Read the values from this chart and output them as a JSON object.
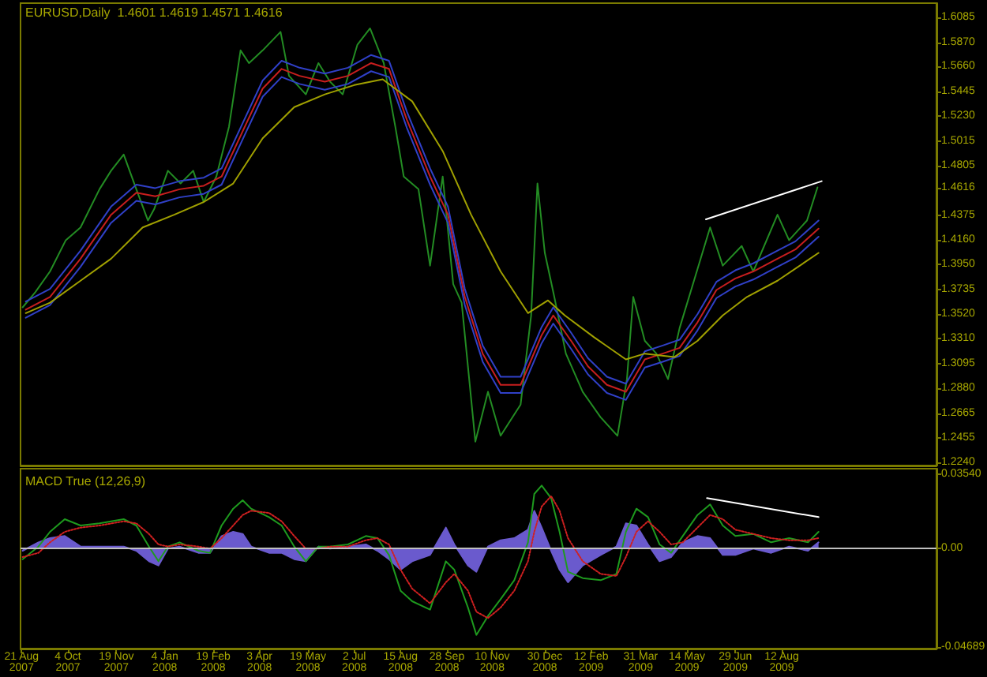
{
  "chart_data": [
    {
      "type": "line",
      "title": "EURUSD,Daily  1.4601 1.4619 1.4571 1.4616",
      "xlim": [
        "2007-08-20",
        "2010-01-06"
      ],
      "ylim": [
        1.2213,
        1.6208
      ],
      "yticks": [
        1.6085,
        {
          "value": 1.587,
          "label": "1.5870"
        },
        {
          "value": 1.566,
          "label": "1.5660"
        },
        1.5445,
        {
          "value": 1.523,
          "label": "1.5230"
        },
        1.5015,
        1.4805,
        1.4616,
        1.4375,
        {
          "value": 1.416,
          "label": "1.4160"
        },
        {
          "value": 1.395,
          "label": "1.3950"
        },
        1.3735,
        {
          "value": 1.352,
          "label": "1.3520"
        },
        {
          "value": 1.331,
          "label": "1.3310"
        },
        1.3095,
        {
          "value": 1.288,
          "label": "1.2880"
        },
        1.2665,
        1.2455,
        {
          "value": 1.224,
          "label": "1.2240"
        }
      ],
      "tick_labels": "y",
      "marker": "none",
      "series": [
        {
          "type": "line",
          "color": "#238c23",
          "x": [
            "2007-08-22",
            "2007-09-03",
            "2007-09-17",
            "2007-10-02",
            "2007-10-16",
            "2007-11-03",
            "2007-11-14",
            "2007-11-26",
            "2007-12-08",
            "2007-12-19",
            "2007-12-25",
            "2008-01-07",
            "2008-01-19",
            "2008-01-31",
            "2008-02-10",
            "2008-02-22",
            "2008-03-05",
            "2008-03-16",
            "2008-03-24",
            "2008-04-06",
            "2008-04-23",
            "2008-05-01",
            "2008-05-17",
            "2008-05-29",
            "2008-06-09",
            "2008-06-21",
            "2008-07-05",
            "2008-07-17",
            "2008-07-30",
            "2008-08-10",
            "2008-08-18",
            "2008-09-01",
            "2008-09-12",
            "2008-09-24",
            "2008-10-04",
            "2008-10-12",
            "2008-10-25",
            "2008-11-06",
            "2008-11-18",
            "2008-12-07",
            "2008-12-17",
            "2008-12-23",
            "2008-12-30",
            "2009-01-08",
            "2009-01-19",
            "2009-02-04",
            "2009-02-21",
            "2009-03-09",
            "2009-03-18",
            "2009-03-24",
            "2009-04-04",
            "2009-04-15",
            "2009-04-26",
            "2009-05-07",
            "2009-05-18",
            "2009-06-05",
            "2009-06-17",
            "2009-07-05",
            "2009-07-16",
            "2009-08-08",
            "2009-08-19",
            "2009-09-05",
            "2009-09-15"
          ],
          "values": [
            1.358,
            1.371,
            1.389,
            1.416,
            1.427,
            1.46,
            1.476,
            1.49,
            1.46,
            1.433,
            1.443,
            1.476,
            1.465,
            1.476,
            1.449,
            1.471,
            1.514,
            1.58,
            1.569,
            1.58,
            1.596,
            1.558,
            1.542,
            1.569,
            1.553,
            1.542,
            1.585,
            1.599,
            1.569,
            1.514,
            1.471,
            1.46,
            1.394,
            1.471,
            1.378,
            1.362,
            1.242,
            1.285,
            1.247,
            1.274,
            1.351,
            1.465,
            1.405,
            1.367,
            1.318,
            1.285,
            1.263,
            1.247,
            1.296,
            1.367,
            1.329,
            1.318,
            1.296,
            1.34,
            1.373,
            1.427,
            1.394,
            1.411,
            1.389,
            1.438,
            1.416,
            1.433,
            1.4616
          ]
        },
        {
          "type": "line",
          "color": "#3040c8",
          "x": [
            "2007-08-25",
            "2007-09-17",
            "2007-10-16",
            "2007-11-14",
            "2007-12-08",
            "2007-12-26",
            "2008-01-18",
            "2008-02-10",
            "2008-02-27",
            "2008-03-20",
            "2008-04-06",
            "2008-04-24",
            "2008-05-11",
            "2008-06-04",
            "2008-06-26",
            "2008-07-18",
            "2008-08-04",
            "2008-08-21",
            "2008-09-12",
            "2008-09-29",
            "2008-10-15",
            "2008-11-01",
            "2008-11-18",
            "2008-12-07",
            "2008-12-27",
            "2009-01-07",
            "2009-01-24",
            "2009-02-09",
            "2009-02-27",
            "2009-03-17",
            "2009-04-04",
            "2009-04-21",
            "2009-05-07",
            "2009-05-24",
            "2009-06-11",
            "2009-06-29",
            "2009-07-16",
            "2009-08-08",
            "2009-08-25",
            "2009-09-16"
          ],
          "values": [
            1.363,
            1.374,
            1.407,
            1.445,
            1.464,
            1.461,
            1.467,
            1.47,
            1.478,
            1.521,
            1.554,
            1.571,
            1.565,
            1.56,
            1.565,
            1.576,
            1.571,
            1.527,
            1.478,
            1.445,
            1.374,
            1.325,
            1.298,
            1.298,
            1.341,
            1.358,
            1.336,
            1.314,
            1.298,
            1.292,
            1.32,
            1.325,
            1.33,
            1.352,
            1.38,
            1.39,
            1.396,
            1.407,
            1.415,
            1.433
          ]
        },
        {
          "type": "line",
          "color": "#c81e1e",
          "x": [
            "2007-08-25",
            "2007-09-17",
            "2007-10-16",
            "2007-11-14",
            "2007-12-08",
            "2007-12-26",
            "2008-01-18",
            "2008-02-10",
            "2008-02-27",
            "2008-03-20",
            "2008-04-06",
            "2008-04-24",
            "2008-05-11",
            "2008-06-04",
            "2008-06-26",
            "2008-07-18",
            "2008-08-04",
            "2008-08-21",
            "2008-09-12",
            "2008-09-29",
            "2008-10-15",
            "2008-11-01",
            "2008-11-18",
            "2008-12-07",
            "2008-12-27",
            "2009-01-07",
            "2009-01-24",
            "2009-02-09",
            "2009-02-27",
            "2009-03-17",
            "2009-04-04",
            "2009-04-21",
            "2009-05-07",
            "2009-05-24",
            "2009-06-11",
            "2009-06-29",
            "2009-07-16",
            "2009-08-08",
            "2009-08-25",
            "2009-09-16"
          ],
          "values": [
            1.356,
            1.367,
            1.4,
            1.438,
            1.457,
            1.454,
            1.46,
            1.463,
            1.471,
            1.514,
            1.547,
            1.564,
            1.558,
            1.553,
            1.558,
            1.569,
            1.564,
            1.52,
            1.471,
            1.438,
            1.367,
            1.318,
            1.291,
            1.291,
            1.334,
            1.351,
            1.329,
            1.307,
            1.291,
            1.285,
            1.313,
            1.318,
            1.323,
            1.345,
            1.373,
            1.383,
            1.389,
            1.4,
            1.408,
            1.426
          ]
        },
        {
          "type": "line",
          "color": "#3040c8",
          "x": [
            "2007-08-25",
            "2007-09-17",
            "2007-10-16",
            "2007-11-14",
            "2007-12-08",
            "2007-12-26",
            "2008-01-18",
            "2008-02-10",
            "2008-02-27",
            "2008-03-20",
            "2008-04-06",
            "2008-04-24",
            "2008-05-11",
            "2008-06-04",
            "2008-06-26",
            "2008-07-18",
            "2008-08-04",
            "2008-08-21",
            "2008-09-12",
            "2008-09-29",
            "2008-10-15",
            "2008-11-01",
            "2008-11-18",
            "2008-12-07",
            "2008-12-27",
            "2009-01-07",
            "2009-01-24",
            "2009-02-09",
            "2009-02-27",
            "2009-03-17",
            "2009-04-04",
            "2009-04-21",
            "2009-05-07",
            "2009-05-24",
            "2009-06-11",
            "2009-06-29",
            "2009-07-16",
            "2009-08-08",
            "2009-08-25",
            "2009-09-16"
          ],
          "values": [
            1.349,
            1.36,
            1.393,
            1.431,
            1.45,
            1.447,
            1.453,
            1.456,
            1.464,
            1.507,
            1.54,
            1.557,
            1.551,
            1.546,
            1.551,
            1.562,
            1.557,
            1.513,
            1.464,
            1.431,
            1.36,
            1.311,
            1.284,
            1.284,
            1.327,
            1.344,
            1.322,
            1.3,
            1.284,
            1.278,
            1.306,
            1.311,
            1.316,
            1.338,
            1.366,
            1.376,
            1.382,
            1.393,
            1.401,
            1.419
          ]
        },
        {
          "type": "line",
          "color": "#a0a000",
          "x": [
            "2007-08-25",
            "2007-09-17",
            "2007-10-16",
            "2007-11-14",
            "2007-12-14",
            "2008-01-13",
            "2008-02-10",
            "2008-03-09",
            "2008-04-06",
            "2008-05-06",
            "2008-06-04",
            "2008-07-02",
            "2008-07-29",
            "2008-08-26",
            "2008-09-24",
            "2008-10-21",
            "2008-11-18",
            "2008-12-14",
            "2009-01-02",
            "2009-01-18",
            "2009-02-15",
            "2009-03-17",
            "2009-04-04",
            "2009-05-02",
            "2009-05-24",
            "2009-06-17",
            "2009-07-10",
            "2009-08-08",
            "2009-09-16"
          ],
          "values": [
            1.353,
            1.362,
            1.381,
            1.4,
            1.427,
            1.438,
            1.449,
            1.465,
            1.504,
            1.531,
            1.542,
            1.55,
            1.555,
            1.536,
            1.493,
            1.438,
            1.389,
            1.353,
            1.364,
            1.351,
            1.332,
            1.313,
            1.318,
            1.315,
            1.329,
            1.351,
            1.367,
            1.381,
            1.405
          ]
        },
        {
          "type": "line",
          "color": "#ffffff",
          "x": [
            "2009-06-01",
            "2009-09-19"
          ],
          "values": [
            1.434,
            1.467
          ]
        }
      ]
    },
    {
      "type": "line",
      "title": "MACD True (12,26,9)",
      "xlim": [
        "2007-08-20",
        "2010-01-06"
      ],
      "xticks": [
        {
          "value": "2007-08-21",
          "label": "21 Aug 2007"
        },
        {
          "value": "2007-10-04",
          "label": "4 Oct 2007"
        },
        {
          "value": "2007-11-19",
          "label": "19 Nov 2007"
        },
        {
          "value": "2008-01-04",
          "label": "4 Jan 2008"
        },
        {
          "value": "2008-02-19",
          "label": "19 Feb 2008"
        },
        {
          "value": "2008-04-03",
          "label": "3 Apr 2008"
        },
        {
          "value": "2008-05-19",
          "label": "19 May 2008"
        },
        {
          "value": "2008-07-02",
          "label": "2 Jul 2008"
        },
        {
          "value": "2008-08-15",
          "label": "15 Aug 2008"
        },
        {
          "value": "2008-09-28",
          "label": "28 Sep 2008"
        },
        {
          "value": "2008-11-10",
          "label": "10 Nov 2008"
        },
        {
          "value": "2008-12-30",
          "label": "30 Dec 2008"
        },
        {
          "value": "2009-02-12",
          "label": "12 Feb 2009"
        },
        {
          "value": "2009-03-31",
          "label": "31 Mar 2009"
        },
        {
          "value": "2009-05-14",
          "label": "14 May 2009"
        },
        {
          "value": "2009-06-29",
          "label": "29 Jun 2009"
        },
        {
          "value": "2009-08-12",
          "label": "12 Aug 2009"
        }
      ],
      "ylim": [
        -0.0475,
        0.038
      ],
      "yticks": [
        {
          "value": 0.0354,
          "label": "0.03540"
        },
        {
          "value": 0,
          "label": "0.00"
        },
        -0.04689
      ],
      "marker": "none",
      "ref_lines": [
        {
          "axis": "y",
          "value": 0,
          "color": "#c0c0c0"
        }
      ],
      "series": [
        {
          "type": "area",
          "color": "#6a5acd",
          "x": [
            "2007-08-22",
            "2007-09-06",
            "2007-09-17",
            "2007-10-01",
            "2007-10-16",
            "2007-11-03",
            "2007-11-26",
            "2007-12-08",
            "2007-12-20",
            "2007-12-29",
            "2008-01-07",
            "2008-01-18",
            "2008-02-05",
            "2008-02-16",
            "2008-02-27",
            "2008-03-09",
            "2008-03-18",
            "2008-03-26",
            "2008-04-12",
            "2008-04-24",
            "2008-05-06",
            "2008-05-17",
            "2008-05-29",
            "2008-06-09",
            "2008-06-26",
            "2008-07-13",
            "2008-07-24",
            "2008-08-04",
            "2008-08-15",
            "2008-08-26",
            "2008-09-12",
            "2008-09-27",
            "2008-10-05",
            "2008-10-18",
            "2008-10-26",
            "2008-11-06",
            "2008-11-18",
            "2008-12-01",
            "2008-12-14",
            "2008-12-20",
            "2008-12-27",
            "2009-01-05",
            "2009-01-13",
            "2009-01-21",
            "2009-02-04",
            "2009-02-21",
            "2009-03-08",
            "2009-03-17",
            "2009-03-27",
            "2009-04-07",
            "2009-04-18",
            "2009-04-29",
            "2009-05-10",
            "2009-05-24",
            "2009-06-05",
            "2009-06-17",
            "2009-06-29",
            "2009-07-16",
            "2009-08-02",
            "2009-08-19",
            "2009-09-06",
            "2009-09-16"
          ],
          "values": [
            -0.001,
            0.003,
            0.005,
            0.006,
            0.001,
            0.001,
            0.001,
            -0.001,
            -0.006,
            -0.008,
            0,
            0.001,
            -0.002,
            -0.002,
            0.006,
            0.008,
            0.007,
            0.001,
            -0.002,
            -0.002,
            -0.005,
            -0.006,
            0.001,
            0,
            0.001,
            0.002,
            -0.001,
            -0.005,
            -0.01,
            -0.006,
            -0.003,
            0.01,
            0.002,
            -0.008,
            -0.011,
            0.001,
            0.004,
            0.005,
            0.009,
            0.018,
            0.01,
            -0.001,
            -0.01,
            -0.016,
            -0.008,
            -0.003,
            0.001,
            0.012,
            0.011,
            0.002,
            -0.006,
            -0.004,
            0.003,
            0.006,
            0.005,
            -0.003,
            -0.003,
            0,
            -0.002,
            0.001,
            -0.001,
            0.003
          ]
        },
        {
          "type": "line",
          "color": "#1e9a1e",
          "x": [
            "2007-08-22",
            "2007-09-06",
            "2007-09-17",
            "2007-10-01",
            "2007-10-16",
            "2007-11-03",
            "2007-11-26",
            "2007-12-08",
            "2007-12-20",
            "2007-12-29",
            "2008-01-07",
            "2008-01-18",
            "2008-02-05",
            "2008-02-16",
            "2008-02-27",
            "2008-03-09",
            "2008-03-18",
            "2008-03-26",
            "2008-04-12",
            "2008-04-24",
            "2008-05-06",
            "2008-05-17",
            "2008-05-29",
            "2008-06-09",
            "2008-06-26",
            "2008-07-13",
            "2008-07-24",
            "2008-08-04",
            "2008-08-15",
            "2008-08-26",
            "2008-09-12",
            "2008-09-27",
            "2008-10-05",
            "2008-10-18",
            "2008-10-26",
            "2008-11-06",
            "2008-11-18",
            "2008-12-01",
            "2008-12-14",
            "2008-12-20",
            "2008-12-27",
            "2009-01-05",
            "2009-01-13",
            "2009-01-21",
            "2009-02-04",
            "2009-02-21",
            "2009-03-08",
            "2009-03-17",
            "2009-03-27",
            "2009-04-07",
            "2009-04-18",
            "2009-04-29",
            "2009-05-10",
            "2009-05-24",
            "2009-06-05",
            "2009-06-17",
            "2009-06-29",
            "2009-07-16",
            "2009-08-02",
            "2009-08-19",
            "2009-09-06",
            "2009-09-16"
          ],
          "values": [
            -0.005,
            0.001,
            0.008,
            0.014,
            0.011,
            0.012,
            0.014,
            0.011,
            0.001,
            -0.006,
            0.001,
            0.003,
            -0.001,
            -0.002,
            0.011,
            0.019,
            0.023,
            0.019,
            0.015,
            0.011,
            0.001,
            -0.006,
            0.001,
            0.001,
            0.002,
            0.006,
            0.005,
            -0.003,
            -0.02,
            -0.025,
            -0.029,
            -0.006,
            -0.01,
            -0.028,
            -0.041,
            -0.032,
            -0.024,
            -0.015,
            0.003,
            0.026,
            0.03,
            0.024,
            0.008,
            -0.011,
            -0.014,
            -0.015,
            -0.012,
            0.008,
            0.019,
            0.015,
            0.002,
            -0.002,
            0.006,
            0.016,
            0.021,
            0.011,
            0.006,
            0.007,
            0.003,
            0.005,
            0.003,
            0.008
          ]
        },
        {
          "type": "line",
          "color": "#d02020",
          "line_style": "dotted",
          "x": [
            "2007-08-22",
            "2007-09-06",
            "2007-09-17",
            "2007-10-01",
            "2007-10-16",
            "2007-11-03",
            "2007-11-26",
            "2007-12-08",
            "2007-12-20",
            "2007-12-29",
            "2008-01-07",
            "2008-01-18",
            "2008-02-05",
            "2008-02-16",
            "2008-02-27",
            "2008-03-09",
            "2008-03-18",
            "2008-03-26",
            "2008-04-12",
            "2008-04-24",
            "2008-05-06",
            "2008-05-17",
            "2008-05-29",
            "2008-06-09",
            "2008-06-26",
            "2008-07-13",
            "2008-07-24",
            "2008-08-04",
            "2008-08-15",
            "2008-08-26",
            "2008-09-12",
            "2008-09-27",
            "2008-10-05",
            "2008-10-18",
            "2008-10-26",
            "2008-11-06",
            "2008-11-18",
            "2008-12-01",
            "2008-12-14",
            "2008-12-20",
            "2008-12-27",
            "2009-01-05",
            "2009-01-13",
            "2009-01-21",
            "2009-02-04",
            "2009-02-21",
            "2009-03-08",
            "2009-03-17",
            "2009-03-27",
            "2009-04-07",
            "2009-04-18",
            "2009-04-29",
            "2009-05-10",
            "2009-05-24",
            "2009-06-05",
            "2009-06-17",
            "2009-06-29",
            "2009-07-16",
            "2009-08-02",
            "2009-08-19",
            "2009-09-06",
            "2009-09-16"
          ],
          "values": [
            -0.004,
            -0.002,
            0.003,
            0.008,
            0.01,
            0.011,
            0.013,
            0.012,
            0.007,
            0.002,
            0.001,
            0.002,
            0.001,
            0,
            0.005,
            0.011,
            0.016,
            0.018,
            0.017,
            0.013,
            0.006,
            0,
            0,
            0.001,
            0.001,
            0.004,
            0.005,
            0.002,
            -0.01,
            -0.019,
            -0.026,
            -0.016,
            -0.012,
            -0.02,
            -0.03,
            -0.033,
            -0.028,
            -0.02,
            -0.006,
            0.008,
            0.02,
            0.025,
            0.018,
            0.005,
            -0.006,
            -0.012,
            -0.013,
            -0.004,
            0.008,
            0.013,
            0.008,
            0.002,
            0.003,
            0.01,
            0.016,
            0.014,
            0.009,
            0.007,
            0.005,
            0.004,
            0.004,
            0.005
          ]
        },
        {
          "type": "line",
          "color": "#ffffff",
          "x": [
            "2009-06-02",
            "2009-09-16"
          ],
          "values": [
            0.024,
            0.015
          ]
        }
      ]
    }
  ]
}
